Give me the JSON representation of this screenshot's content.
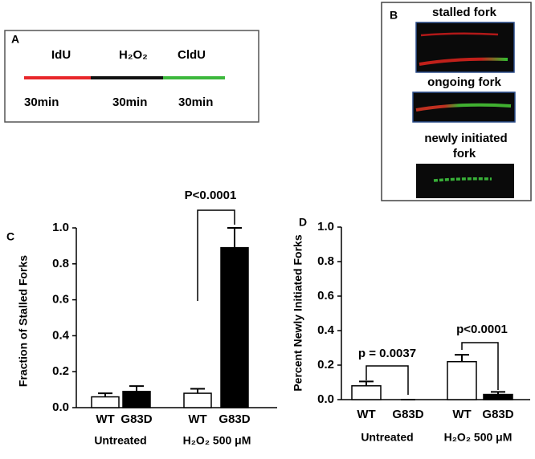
{
  "panel_a": {
    "label": "A",
    "labels": [
      "IdU",
      "H₂O₂",
      "CldU"
    ],
    "durations": [
      "30min",
      "30min",
      "30min"
    ]
  },
  "panel_b": {
    "label": "B",
    "captions": [
      "stalled fork",
      "ongoing fork",
      "newly initiated",
      "fork"
    ]
  },
  "chart_data": [
    {
      "type": "bar",
      "panel_label": "C",
      "ylabel": "Fraction of Stalled Forks",
      "categories": [
        "WT",
        "G83D",
        "WT",
        "G83D"
      ],
      "groups": [
        "Untreated",
        "H₂O₂ 500 μM"
      ],
      "values": [
        0.06,
        0.09,
        0.08,
        0.89
      ],
      "errors": [
        0.02,
        0.03,
        0.025,
        0.11
      ],
      "colors": [
        "#ffffff",
        "#000000",
        "#ffffff",
        "#000000"
      ],
      "ylim": [
        0,
        1
      ],
      "yticks": [
        {
          "value": 0,
          "label": "0.0"
        },
        0.2,
        0.4,
        0.6,
        0.8,
        {
          "value": 1,
          "label": "1.0"
        }
      ],
      "annotations": [
        "P<0.0001"
      ]
    },
    {
      "type": "bar",
      "panel_label": "D",
      "ylabel": "Percent Newly Initiated  Forks",
      "categories": [
        "WT",
        "G83D",
        "WT",
        "G83D"
      ],
      "groups": [
        "Untreated",
        "H₂O₂ 500 μM"
      ],
      "values": [
        0.08,
        0,
        0.22,
        0.03
      ],
      "errors": [
        0.025,
        0,
        0.04,
        0.015
      ],
      "colors": [
        "#ffffff",
        "#000000",
        "#ffffff",
        "#000000"
      ],
      "ylim": [
        0,
        1
      ],
      "yticks": [
        {
          "value": 0,
          "label": "0.0"
        },
        0.2,
        0.4,
        0.6,
        0.8,
        {
          "value": 1,
          "label": "1.0"
        }
      ],
      "annotations": [
        "p = 0.0037",
        "p<0.0001"
      ]
    }
  ]
}
